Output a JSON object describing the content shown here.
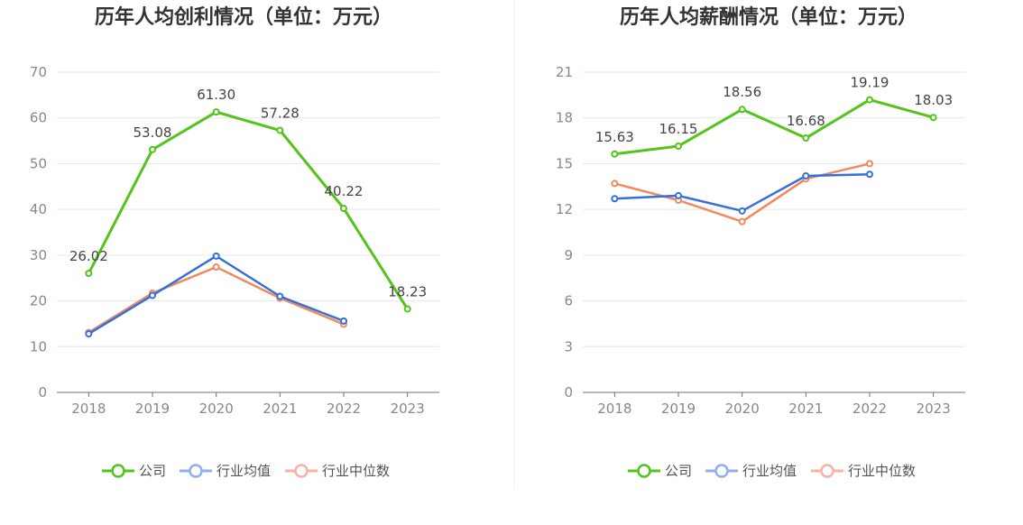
{
  "colors": {
    "company": "#52c41a",
    "industry_avg": "#3470db",
    "industry_median": "#f08a5d",
    "industry_avg_legend": "#8fb0ea",
    "industry_median_legend": "#f6b3a1"
  },
  "legend": [
    "公司",
    "行业均值",
    "行业中位数"
  ],
  "chart_data": [
    {
      "type": "line",
      "title": "历年人均创利情况（单位：万元）",
      "categories": [
        "2018",
        "2019",
        "2020",
        "2021",
        "2022",
        "2023"
      ],
      "ylim": [
        0,
        70
      ],
      "yticks": [
        0,
        10,
        20,
        30,
        40,
        50,
        60,
        70
      ],
      "grid": true,
      "legend_position": "bottom",
      "series": [
        {
          "name": "公司",
          "values": [
            26.02,
            53.08,
            61.3,
            57.28,
            40.22,
            18.23
          ],
          "labels": [
            "26.02",
            "53.08",
            "61.30",
            "57.28",
            "40.22",
            "18.23"
          ]
        },
        {
          "name": "行业均值",
          "values": [
            12.8,
            21.2,
            29.8,
            21.0,
            15.6,
            null
          ]
        },
        {
          "name": "行业中位数",
          "values": [
            13.1,
            21.7,
            27.4,
            20.6,
            14.9,
            null
          ]
        }
      ]
    },
    {
      "type": "line",
      "title": "历年人均薪酬情况（单位：万元）",
      "categories": [
        "2018",
        "2019",
        "2020",
        "2021",
        "2022",
        "2023"
      ],
      "ylim": [
        0,
        21
      ],
      "yticks": [
        0,
        3,
        6,
        9,
        12,
        15,
        18,
        21
      ],
      "grid": true,
      "legend_position": "bottom",
      "series": [
        {
          "name": "公司",
          "values": [
            15.63,
            16.15,
            18.56,
            16.68,
            19.19,
            18.03
          ],
          "labels": [
            "15.63",
            "16.15",
            "18.56",
            "16.68",
            "19.19",
            "18.03"
          ]
        },
        {
          "name": "行业均值",
          "values": [
            12.7,
            12.9,
            11.9,
            14.2,
            14.3,
            null
          ]
        },
        {
          "name": "行业中位数",
          "values": [
            13.7,
            12.6,
            11.2,
            14.0,
            15.0,
            null
          ]
        }
      ]
    }
  ]
}
